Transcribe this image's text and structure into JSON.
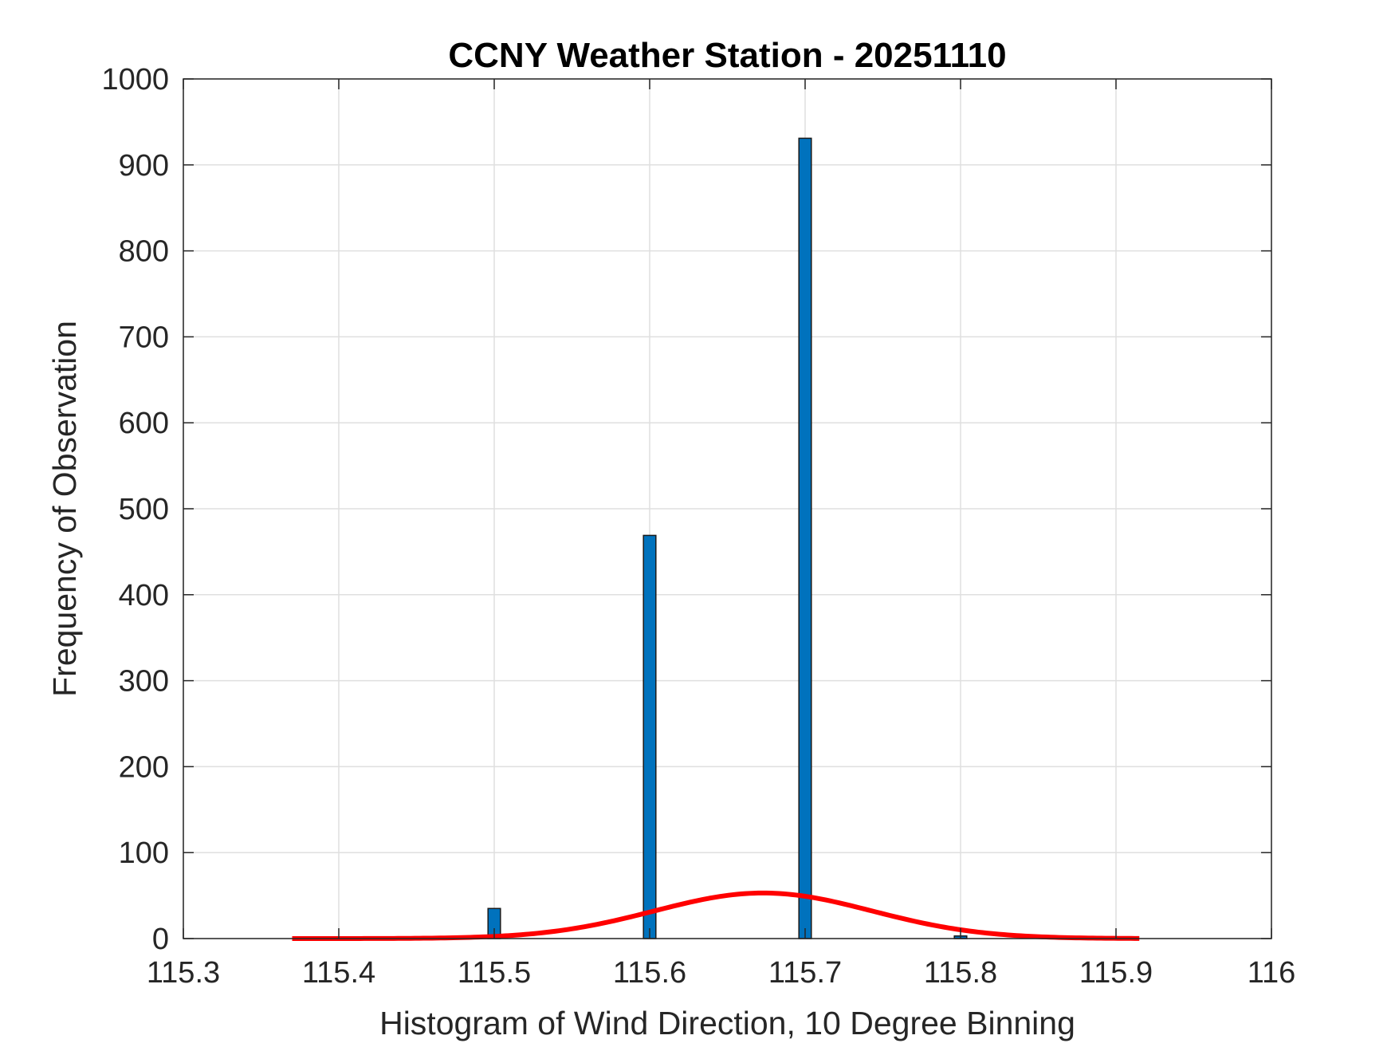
{
  "chart_data": {
    "type": "bar",
    "title": "CCNY Weather Station - 20251110",
    "xlabel": "Histogram of Wind Direction, 10 Degree Binning",
    "ylabel": "Frequency of Observation",
    "xlim": [
      115.3,
      116
    ],
    "ylim": [
      0,
      1000
    ],
    "xticks": [
      115.3,
      115.4,
      115.5,
      115.6,
      115.7,
      115.8,
      115.9,
      116
    ],
    "xtick_labels": [
      "115.3",
      "115.4",
      "115.5",
      "115.6",
      "115.7",
      "115.8",
      "115.9",
      "116"
    ],
    "yticks": [
      0,
      100,
      200,
      300,
      400,
      500,
      600,
      700,
      800,
      900,
      1000
    ],
    "ytick_labels": [
      "0",
      "100",
      "200",
      "300",
      "400",
      "500",
      "600",
      "700",
      "800",
      "900",
      "1000"
    ],
    "grid": true,
    "bars": {
      "bin_width": 0.008,
      "centers": [
        115.5,
        115.6,
        115.7,
        115.8
      ],
      "values": [
        35,
        469,
        931,
        3
      ],
      "color": "#0072BD",
      "edge_color": "#1a1a1a"
    },
    "fit_curve": {
      "type": "normal",
      "mean": 115.673,
      "sigma": 0.07,
      "peak": 53,
      "x_range": [
        115.37,
        115.915
      ],
      "color": "#FF0000"
    }
  }
}
